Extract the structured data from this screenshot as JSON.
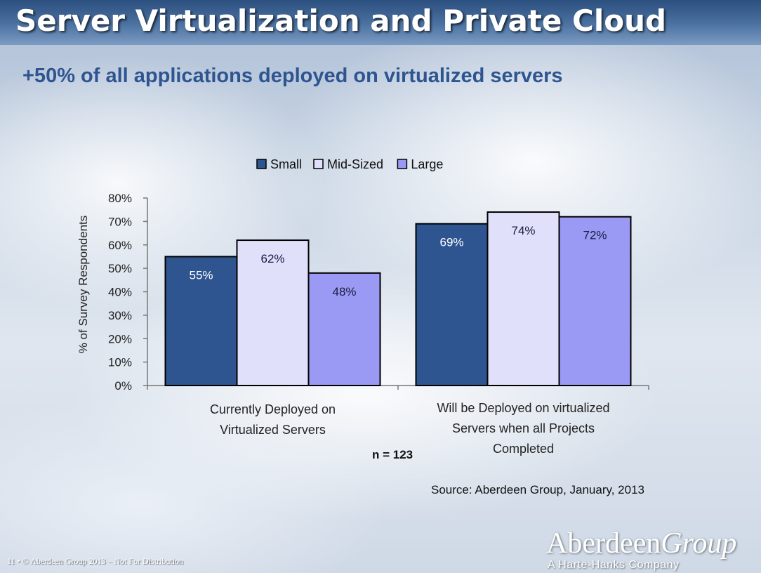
{
  "slide": {
    "title": "Server Virtualization and Private Cloud",
    "subtitle": "+50% of all applications deployed on virtualized servers",
    "n_label": "n = 123",
    "source": "Source:  Aberdeen Group, January, 2013",
    "footer": "11 • © Aberdeen Group 2013 – Not For Distribution",
    "logo_main": "Aberdeen",
    "logo_main_italic": "Group",
    "logo_sub": "A Harte-Hanks Company"
  },
  "colors": {
    "small": "#2e5590",
    "mid": "#e0e0fa",
    "large": "#9a9af5",
    "bar_border": "#000000"
  },
  "chart_data": {
    "type": "bar",
    "categories": [
      [
        "Currently Deployed on",
        "Virtualized Servers"
      ],
      [
        "Will be Deployed on virtualized",
        "Servers when all Projects",
        "Completed"
      ]
    ],
    "series": [
      {
        "name": "Small",
        "values": [
          55,
          69
        ],
        "labels": [
          "55%",
          "69%"
        ]
      },
      {
        "name": "Mid-Sized",
        "values": [
          62,
          74
        ],
        "labels": [
          "62%",
          "74%"
        ]
      },
      {
        "name": "Large",
        "values": [
          48,
          72
        ],
        "labels": [
          "48%",
          "72%"
        ]
      }
    ],
    "ylabel": "% of Survey Respondents",
    "xlabel": "",
    "ylim": [
      0,
      80
    ],
    "yticks": [
      "0%",
      "10%",
      "20%",
      "30%",
      "40%",
      "50%",
      "60%",
      "70%",
      "80%"
    ],
    "legend_position": "top",
    "grid": false
  }
}
